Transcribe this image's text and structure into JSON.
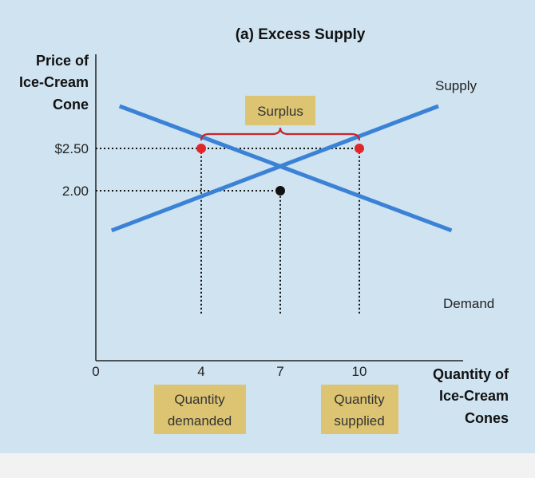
{
  "chart_data": {
    "type": "line",
    "title": "(a) Excess Supply",
    "ylabel": [
      "Price of",
      "Ice-Cream",
      "Cone"
    ],
    "xlabel": [
      "Quantity of",
      "Ice-Cream",
      "Cones"
    ],
    "x_ticks": [
      {
        "value": 0,
        "label": "0"
      },
      {
        "value": 4,
        "label": "4"
      },
      {
        "value": 7,
        "label": "7"
      },
      {
        "value": 10,
        "label": "10"
      }
    ],
    "y_ticks": [
      {
        "value": 2.5,
        "label": "$2.50"
      },
      {
        "value": 2.0,
        "label": "2.00"
      }
    ],
    "series": [
      {
        "name": "Supply",
        "color": "#3b82d6",
        "points": [
          [
            0.6,
            1.53
          ],
          [
            13.0,
            3.0
          ]
        ]
      },
      {
        "name": "Demand",
        "color": "#3b82d6",
        "points": [
          [
            0.9,
            3.0
          ],
          [
            13.5,
            1.53
          ]
        ]
      }
    ],
    "highlight_points": [
      {
        "x": 4,
        "y": 2.5,
        "color": "#e0262b"
      },
      {
        "x": 10,
        "y": 2.5,
        "color": "#e0262b"
      },
      {
        "x": 7,
        "y": 2.0,
        "color": "#111111"
      }
    ],
    "guide_lines": [
      {
        "from": [
          0,
          2.5
        ],
        "to": [
          10,
          2.5
        ]
      },
      {
        "from": [
          0,
          2.0
        ],
        "to": [
          7,
          2.0
        ]
      },
      {
        "from": [
          4,
          0.55
        ],
        "to": [
          4,
          2.5
        ]
      },
      {
        "from": [
          7,
          0.55
        ],
        "to": [
          7,
          2.0
        ]
      },
      {
        "from": [
          10,
          0.55
        ],
        "to": [
          10,
          2.5
        ]
      }
    ],
    "brace": {
      "from": 4,
      "to": 10,
      "color": "#c8262b"
    },
    "annotations": {
      "surplus": "Surplus",
      "quantity_demanded": [
        "Quantity",
        "demanded"
      ],
      "quantity_supplied": [
        "Quantity",
        "supplied"
      ]
    },
    "annotation_box_color": "#dcc472",
    "xlim": [
      0,
      13.5
    ],
    "ylim": [
      0.55,
      3.3
    ]
  }
}
